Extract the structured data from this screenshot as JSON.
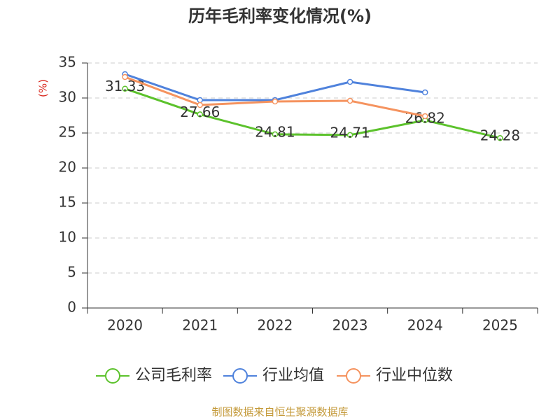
{
  "chart_data": {
    "type": "line",
    "title": "历年毛利率变化情况(%)",
    "y_label": "(%)",
    "categories": [
      "2020",
      "2021",
      "2022",
      "2023",
      "2024",
      "2025"
    ],
    "series": [
      {
        "name": "公司毛利率",
        "color": "#5cc22c",
        "values": [
          31.33,
          27.66,
          24.81,
          24.71,
          26.82,
          24.28
        ],
        "data_labels": true
      },
      {
        "name": "行业均值",
        "color": "#4f82dc",
        "values": [
          33.4,
          29.7,
          29.7,
          32.3,
          30.8,
          null
        ]
      },
      {
        "name": "行业中位数",
        "color": "#f5935f",
        "values": [
          33.0,
          29.0,
          29.5,
          29.6,
          27.4,
          null
        ]
      }
    ],
    "ylim": [
      0,
      35
    ],
    "yticks": [
      0,
      5,
      10,
      15,
      20,
      25,
      30,
      35
    ],
    "grid": true,
    "footer": "制图数据来自恒生聚源数据库"
  }
}
